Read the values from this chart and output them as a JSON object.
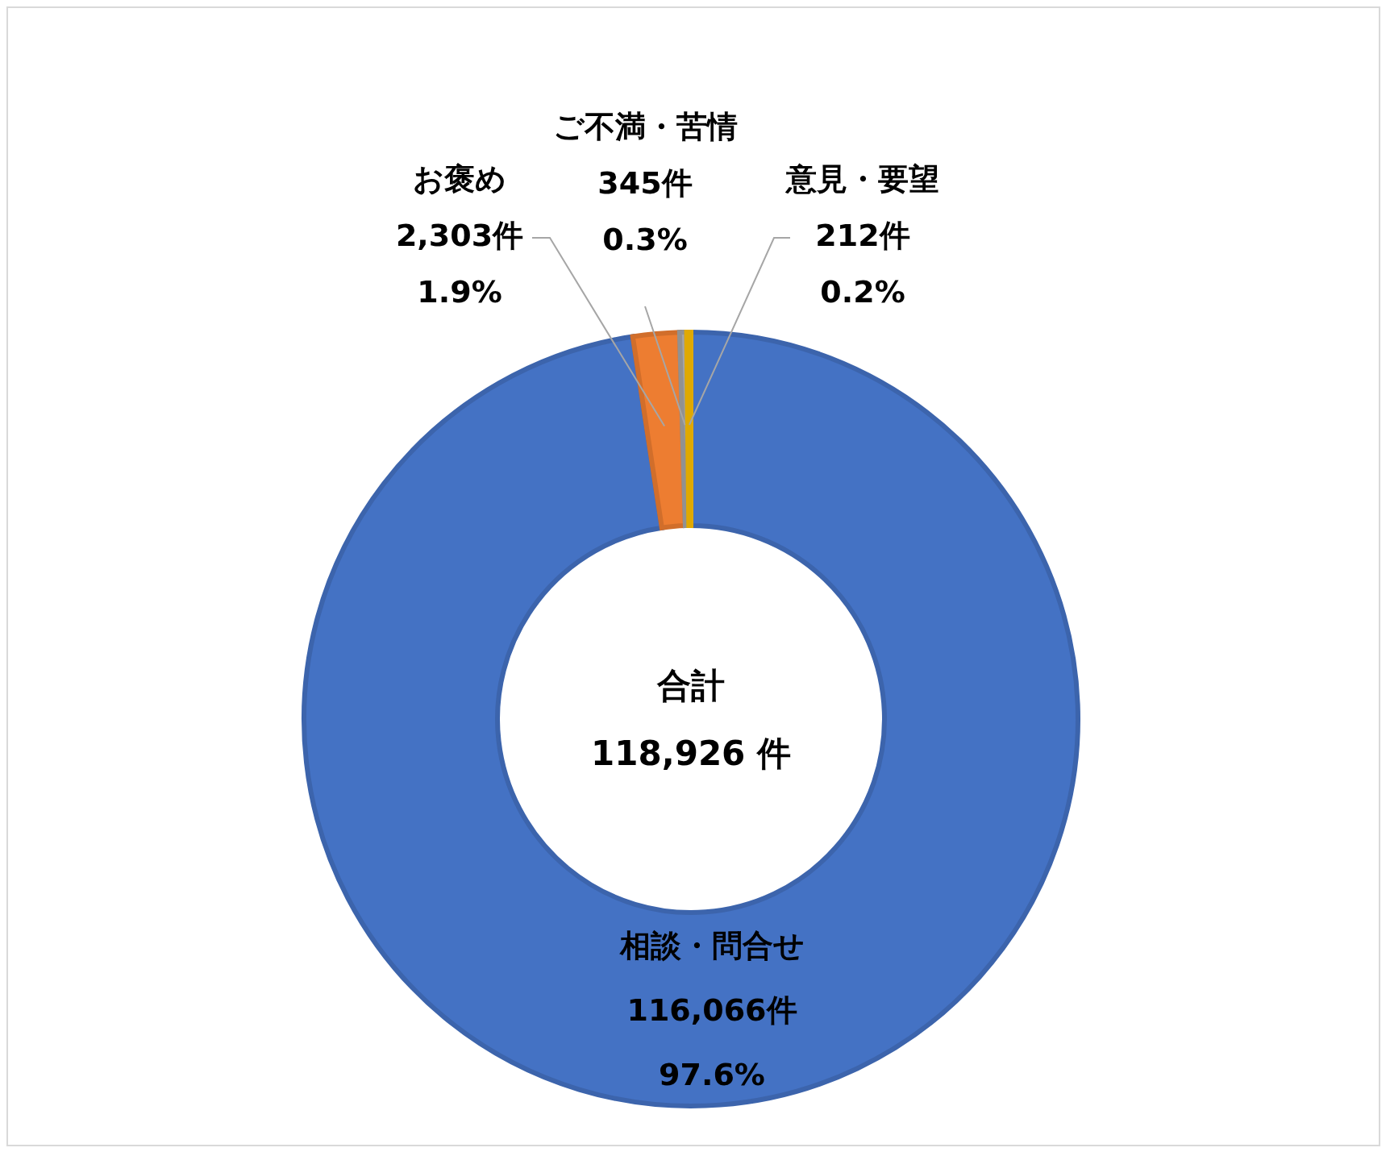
{
  "chart_data": {
    "type": "donut",
    "categories": [
      "相談・問合せ",
      "お褒め",
      "ご不満・苦情",
      "意見・要望"
    ],
    "values": [
      116066,
      2303,
      345,
      212
    ],
    "colors": [
      "#4472c4",
      "#ed7d31",
      "#a5a5a5",
      "#ffc000"
    ],
    "value_labels": [
      "116,066件\n97.6%",
      "2,303件\n1.9%",
      "345件\n0.3%",
      "212件\n0.2%"
    ],
    "annotations": [
      "合計",
      "118,926 件"
    ],
    "legend": false
  }
}
